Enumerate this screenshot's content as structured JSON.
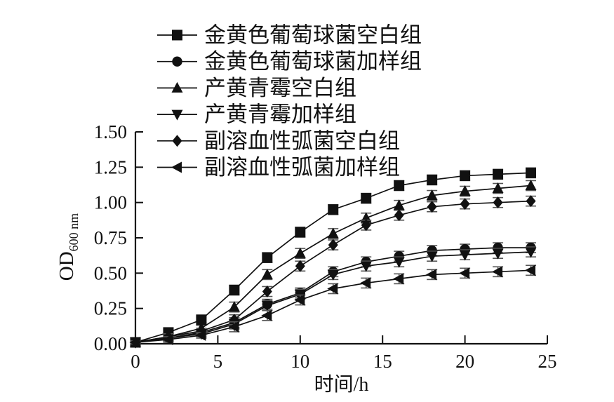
{
  "chart_data": {
    "type": "line",
    "title": "",
    "xlabel": "时间/h",
    "ylabel_main": "OD",
    "ylabel_sub": "600 nm",
    "xlim": [
      0,
      25
    ],
    "ylim": [
      0,
      1.5
    ],
    "x_ticks": [
      5,
      10,
      15,
      20,
      25
    ],
    "x_tick_labels": [
      "0",
      "5",
      "10",
      "15",
      "20",
      "25"
    ],
    "x_tick_label_values": [
      0,
      5,
      10,
      15,
      20,
      25
    ],
    "y_tick_values": [
      0,
      0.25,
      0.5,
      0.75,
      1.0,
      1.25,
      1.5
    ],
    "y_tick_labels": [
      "0.00",
      "0.25",
      "0.50",
      "0.75",
      "1.00",
      "1.25",
      "1.50"
    ],
    "grid": false,
    "legend_position": "top-center, vertical list above plot",
    "line_color": "#111111",
    "error_color": "#555555",
    "x": [
      0,
      2,
      4,
      6,
      8,
      10,
      12,
      14,
      16,
      18,
      20,
      22,
      24
    ],
    "errors": [
      0.01,
      0.02,
      0.02,
      0.035,
      0.035,
      0.035,
      0.035,
      0.035,
      0.035,
      0.035,
      0.035,
      0.035,
      0.035
    ],
    "series": [
      {
        "name": "金黄色葡萄球菌空白组",
        "marker": "square",
        "values": [
          0.01,
          0.08,
          0.17,
          0.38,
          0.61,
          0.79,
          0.95,
          1.03,
          1.12,
          1.16,
          1.19,
          1.2,
          1.21
        ]
      },
      {
        "name": "金黄色葡萄球菌加样组",
        "marker": "circle",
        "values": [
          0.01,
          0.04,
          0.08,
          0.15,
          0.28,
          0.36,
          0.51,
          0.58,
          0.62,
          0.66,
          0.67,
          0.68,
          0.68
        ]
      },
      {
        "name": "产黄青霉空白组",
        "marker": "triangle-up",
        "values": [
          0.01,
          0.05,
          0.11,
          0.26,
          0.49,
          0.64,
          0.78,
          0.89,
          0.98,
          1.05,
          1.08,
          1.1,
          1.12
        ]
      },
      {
        "name": "产黄青霉加样组",
        "marker": "triangle-down",
        "values": [
          0.01,
          0.04,
          0.07,
          0.14,
          0.27,
          0.35,
          0.49,
          0.55,
          0.58,
          0.62,
          0.63,
          0.64,
          0.65
        ]
      },
      {
        "name": "副溶血性弧菌空白组",
        "marker": "diamond",
        "values": [
          0.01,
          0.05,
          0.09,
          0.17,
          0.37,
          0.55,
          0.7,
          0.84,
          0.91,
          0.97,
          0.99,
          1.0,
          1.01
        ]
      },
      {
        "name": "副溶血性弧菌加样组",
        "marker": "triangle-left",
        "values": [
          0.01,
          0.03,
          0.06,
          0.12,
          0.2,
          0.31,
          0.39,
          0.43,
          0.46,
          0.49,
          0.5,
          0.51,
          0.52
        ]
      }
    ]
  }
}
